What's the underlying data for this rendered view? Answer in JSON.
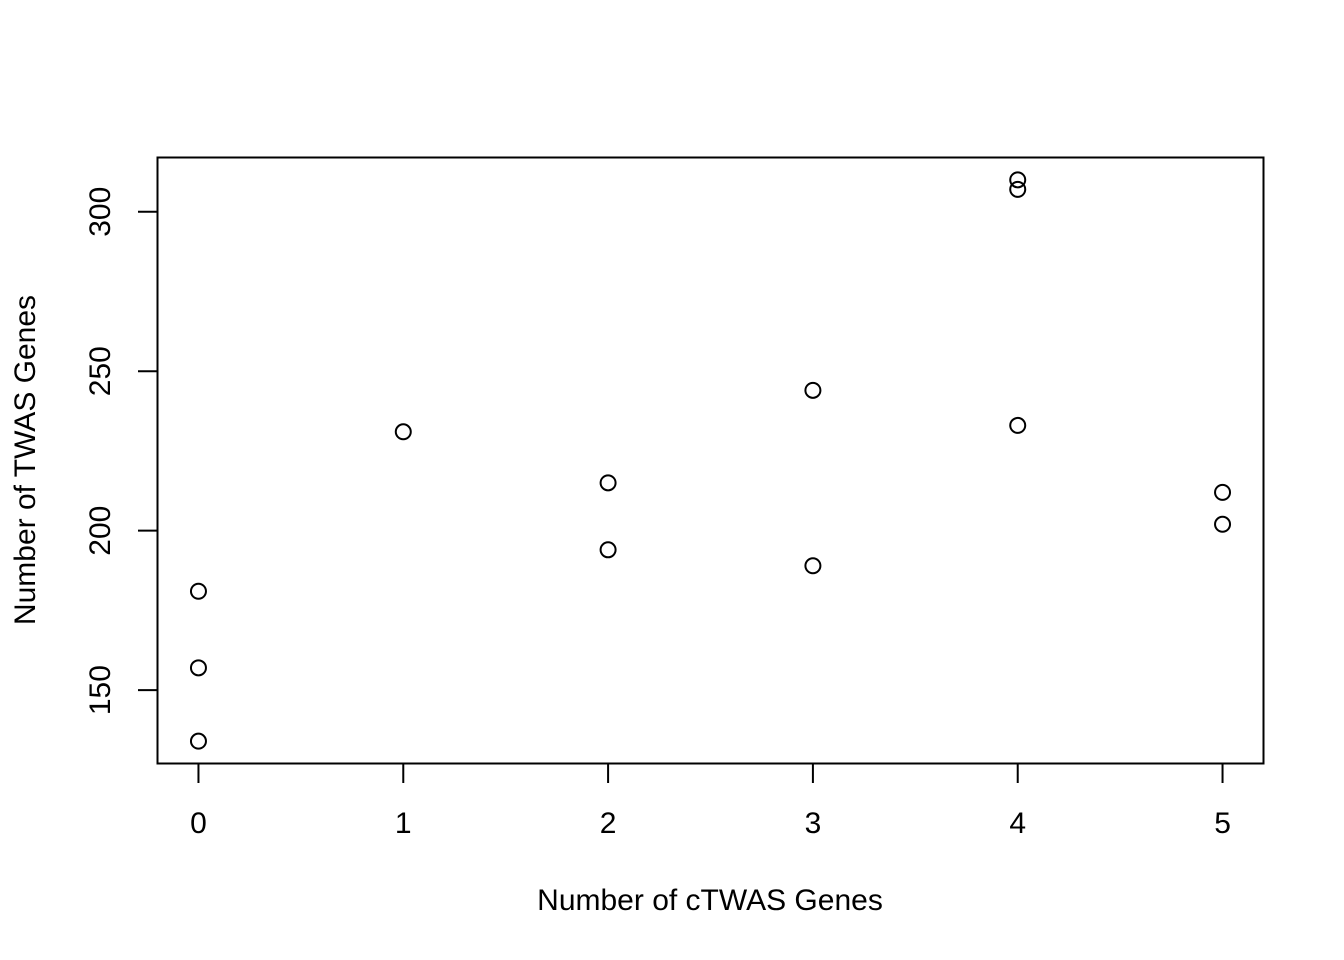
{
  "chart_data": {
    "type": "scatter",
    "title": "",
    "xlabel": "Number of cTWAS Genes",
    "ylabel": "Number of TWAS Genes",
    "xlim": [
      -0.2,
      5.2
    ],
    "ylim": [
      127,
      317
    ],
    "xticks": [
      0,
      1,
      2,
      3,
      4,
      5
    ],
    "yticks": [
      150,
      200,
      250,
      300
    ],
    "grid": false,
    "legend": "none",
    "marker": "open-circle",
    "colors": {
      "marker": "#000000",
      "frame": "#000000",
      "background": "#ffffff"
    },
    "points": [
      {
        "x": 0,
        "y": 134
      },
      {
        "x": 0,
        "y": 157
      },
      {
        "x": 0,
        "y": 181
      },
      {
        "x": 1,
        "y": 231
      },
      {
        "x": 2,
        "y": 194
      },
      {
        "x": 2,
        "y": 215
      },
      {
        "x": 3,
        "y": 189
      },
      {
        "x": 3,
        "y": 244
      },
      {
        "x": 4,
        "y": 233
      },
      {
        "x": 4,
        "y": 307
      },
      {
        "x": 4,
        "y": 310
      },
      {
        "x": 5,
        "y": 202
      },
      {
        "x": 5,
        "y": 212
      }
    ]
  }
}
